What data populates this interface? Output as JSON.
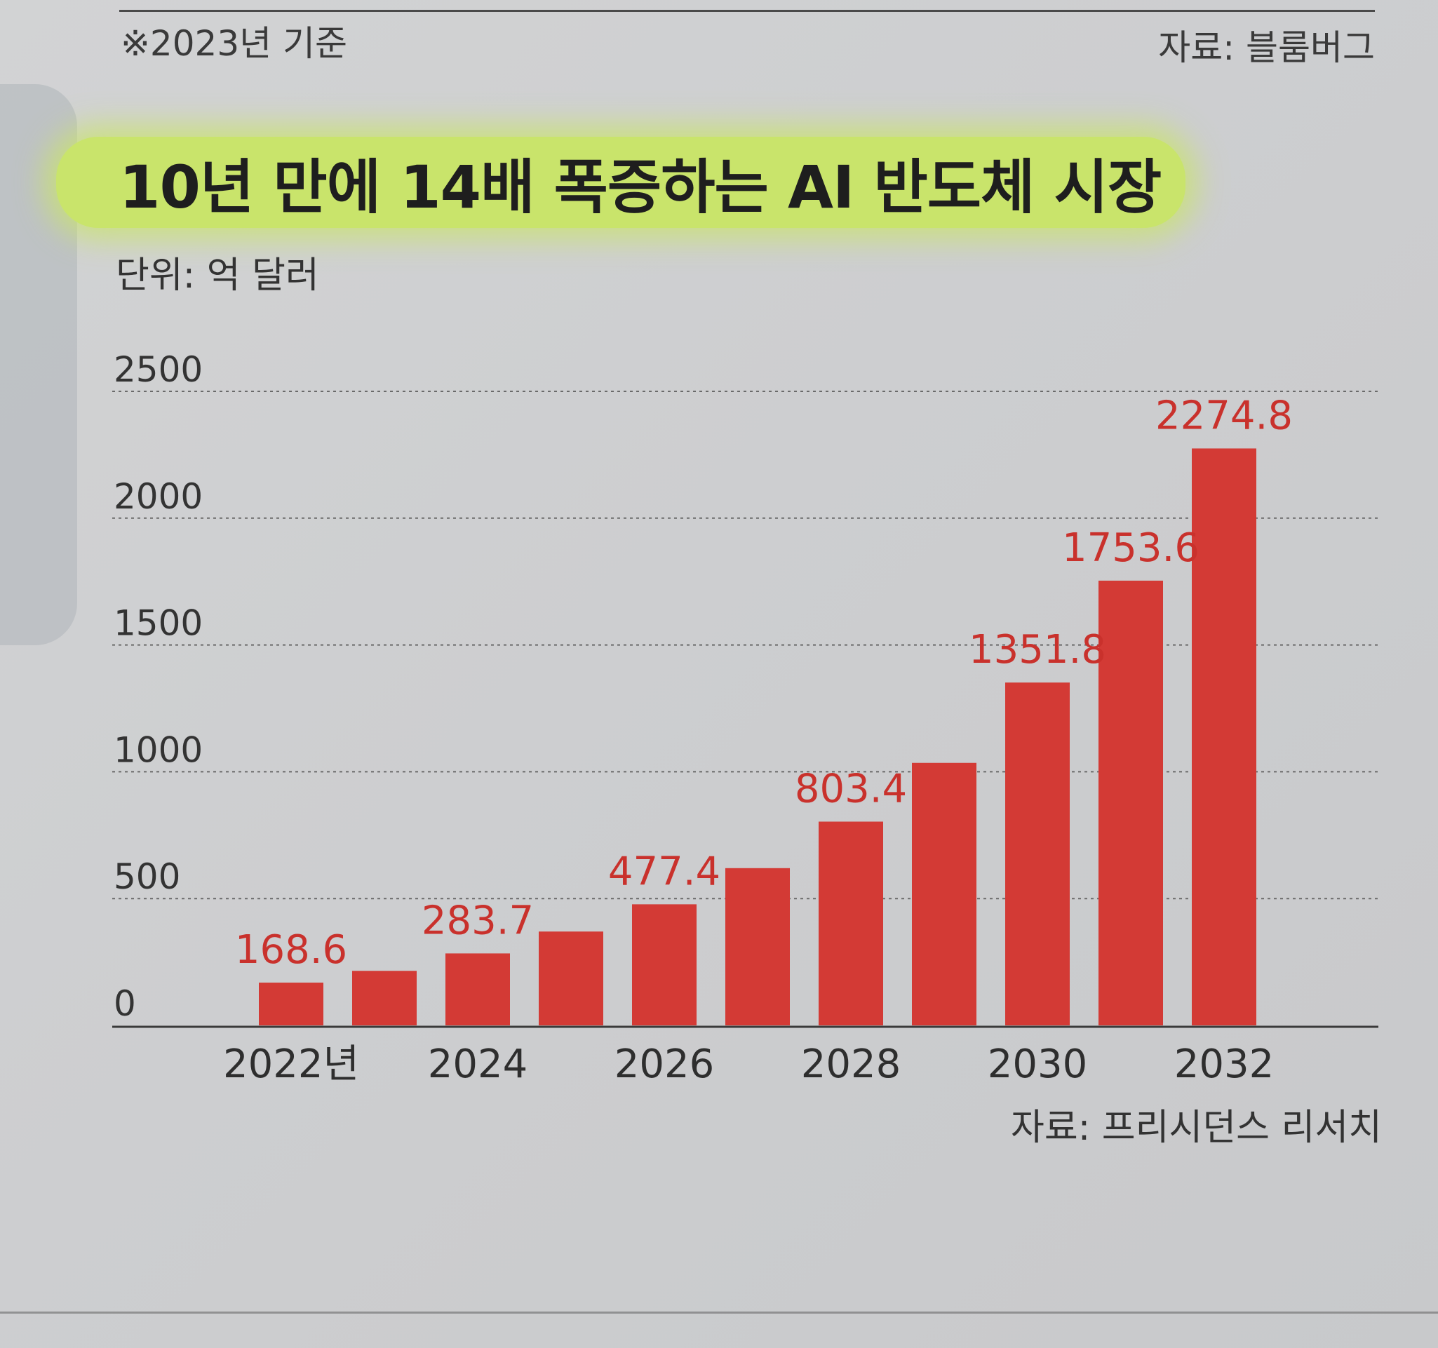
{
  "header": {
    "note": "※2023년 기준",
    "source_top": "자료: 블룸버그",
    "title": "10년 만에 14배 폭증하는 AI 반도체 시장",
    "unit": "단위: 억 달러"
  },
  "footer": {
    "source": "자료: 프리시던스 리서치"
  },
  "colors": {
    "bar": "#d33a35",
    "label": "#c9312c",
    "highlight": "#c9e46b",
    "grid": "#6a6a6a",
    "axis": "#3a3a3a"
  },
  "chart_data": {
    "type": "bar",
    "title": "10년 만에 14배 폭증하는 AI 반도체 시장",
    "ylabel": "단위: 억 달러",
    "xlabel": "",
    "ylim": [
      0,
      2500
    ],
    "yticks": [
      0,
      500,
      1000,
      1500,
      2000,
      2500
    ],
    "grid": true,
    "categories": [
      "2022",
      "2023",
      "2024",
      "2025",
      "2026",
      "2027",
      "2028",
      "2029",
      "2030",
      "2031",
      "2032"
    ],
    "x_tick_labels": [
      {
        "index": 0,
        "label": "2022년"
      },
      {
        "index": 2,
        "label": "2024"
      },
      {
        "index": 4,
        "label": "2026"
      },
      {
        "index": 6,
        "label": "2028"
      },
      {
        "index": 8,
        "label": "2030"
      },
      {
        "index": 10,
        "label": "2032"
      }
    ],
    "values": [
      168.6,
      215,
      283.7,
      370,
      477.4,
      620,
      803.4,
      1035,
      1351.8,
      1753.6,
      2274.8
    ],
    "data_labels": [
      {
        "index": 0,
        "label": "168.6"
      },
      {
        "index": 2,
        "label": "283.7"
      },
      {
        "index": 4,
        "label": "477.4"
      },
      {
        "index": 6,
        "label": "803.4"
      },
      {
        "index": 8,
        "label": "1351.8"
      },
      {
        "index": 9,
        "label": "1753.6"
      },
      {
        "index": 10,
        "label": "2274.8"
      }
    ]
  }
}
